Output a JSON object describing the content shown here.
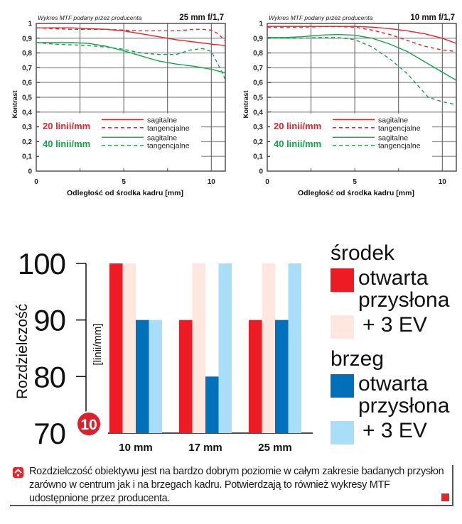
{
  "chart_data": [
    {
      "type": "line",
      "id": "mtf-25mm",
      "title": "25 mm f/1,7",
      "subtitle": "Wykres MTF podany przez producenta",
      "xlabel": "Odległość od środka kadru [mm]",
      "ylabel": "Kontrast",
      "xlim": [
        0,
        10.8
      ],
      "ylim": [
        0,
        1
      ],
      "xticks": [
        0,
        5,
        10
      ],
      "xtick_labels": [
        "0",
        "5",
        "10"
      ],
      "yticks": [
        0,
        0.1,
        0.2,
        0.3,
        0.4,
        0.5,
        0.6,
        0.7,
        0.8,
        0.9,
        1
      ],
      "ytick_labels": [
        "0",
        "0,1",
        "0,2",
        "0,3",
        "0,4",
        "0,5",
        "0,6",
        "0,7",
        "0,8",
        "0,9",
        "1"
      ],
      "grid": true,
      "legend_groups": [
        {
          "label": "20 linii/mm",
          "color": "#e5252c",
          "entries": [
            "sagitalne",
            "tangencjalne"
          ]
        },
        {
          "label": "40 linii/mm",
          "color": "#1aa04a",
          "entries": [
            "sagitalne",
            "tangencjalne"
          ]
        }
      ],
      "series": [
        {
          "name": "20 linii/mm sagitalne",
          "color": "#e5252c",
          "dash": false,
          "x": [
            0,
            1,
            2,
            3,
            4,
            5,
            6,
            7,
            8,
            9,
            10,
            10.8
          ],
          "y": [
            0.97,
            0.97,
            0.97,
            0.965,
            0.96,
            0.95,
            0.93,
            0.91,
            0.89,
            0.875,
            0.86,
            0.85
          ]
        },
        {
          "name": "20 linii/mm tangencjalne",
          "color": "#e5252c",
          "dash": true,
          "x": [
            0,
            1,
            2,
            3,
            4,
            5,
            6,
            7,
            8,
            9,
            9.5,
            10,
            10.4,
            10.8
          ],
          "y": [
            0.97,
            0.965,
            0.96,
            0.96,
            0.96,
            0.955,
            0.95,
            0.95,
            0.95,
            0.96,
            0.96,
            0.955,
            0.93,
            0.88
          ]
        },
        {
          "name": "40 linii/mm sagitalne",
          "color": "#1aa04a",
          "dash": false,
          "x": [
            0,
            1,
            2,
            3,
            4,
            5,
            6,
            7,
            8,
            9,
            10,
            10.8
          ],
          "y": [
            0.87,
            0.87,
            0.87,
            0.865,
            0.845,
            0.815,
            0.78,
            0.745,
            0.725,
            0.71,
            0.69,
            0.665
          ]
        },
        {
          "name": "40 linii/mm tangencjalne",
          "color": "#1aa04a",
          "dash": true,
          "x": [
            0,
            1,
            2,
            3,
            4,
            5,
            6,
            7,
            8,
            8.8,
            9.5,
            10,
            10.4,
            10.8
          ],
          "y": [
            0.87,
            0.86,
            0.855,
            0.85,
            0.84,
            0.825,
            0.8,
            0.79,
            0.79,
            0.82,
            0.83,
            0.81,
            0.72,
            0.62
          ]
        }
      ]
    },
    {
      "type": "line",
      "id": "mtf-10mm",
      "title": "10 mm f/1,7",
      "subtitle": "Wykres MTF podany przez producenta",
      "xlabel": "Odległość od środka kadru [mm]",
      "ylabel": "Kontrast",
      "xlim": [
        0,
        10.8
      ],
      "ylim": [
        0,
        1
      ],
      "xticks": [
        0,
        5,
        10
      ],
      "xtick_labels": [
        "0",
        "5",
        "10"
      ],
      "yticks": [
        0,
        0.1,
        0.2,
        0.3,
        0.4,
        0.5,
        0.6,
        0.7,
        0.8,
        0.9,
        1
      ],
      "ytick_labels": [
        "0",
        "0,1",
        "0,2",
        "0,3",
        "0,4",
        "0,5",
        "0,6",
        "0,7",
        "0,8",
        "0,9",
        "1"
      ],
      "grid": true,
      "legend_groups": [
        {
          "label": "20 linii/mm",
          "color": "#e5252c",
          "entries": [
            "sagitalne",
            "tangencjalne"
          ]
        },
        {
          "label": "40 linii/mm",
          "color": "#1aa04a",
          "entries": [
            "sagitalne",
            "tangencjalne"
          ]
        }
      ],
      "series": [
        {
          "name": "20 linii/mm sagitalne",
          "color": "#e5252c",
          "dash": false,
          "x": [
            0,
            1,
            2,
            3,
            4,
            5,
            6,
            7,
            8,
            9,
            10,
            10.8
          ],
          "y": [
            0.98,
            0.98,
            0.98,
            0.98,
            0.98,
            0.98,
            0.975,
            0.965,
            0.95,
            0.93,
            0.9,
            0.865
          ]
        },
        {
          "name": "20 linii/mm tangencjalne",
          "color": "#e5252c",
          "dash": true,
          "x": [
            0,
            1,
            2,
            3,
            4,
            5,
            6,
            7,
            8,
            9,
            10,
            10.8
          ],
          "y": [
            0.975,
            0.975,
            0.975,
            0.978,
            0.978,
            0.975,
            0.955,
            0.925,
            0.885,
            0.845,
            0.82,
            0.81
          ]
        },
        {
          "name": "40 linii/mm sagitalne",
          "color": "#1aa04a",
          "dash": false,
          "x": [
            0,
            1,
            2,
            3,
            4,
            5,
            6,
            7,
            8,
            9,
            10,
            10.8
          ],
          "y": [
            0.905,
            0.905,
            0.91,
            0.92,
            0.925,
            0.92,
            0.9,
            0.86,
            0.81,
            0.74,
            0.67,
            0.615
          ]
        },
        {
          "name": "40 linii/mm tangencjalne",
          "color": "#1aa04a",
          "dash": true,
          "x": [
            0,
            1,
            2,
            3,
            4,
            5,
            6,
            7,
            8,
            8.6,
            9.2,
            10,
            10.8
          ],
          "y": [
            0.905,
            0.9,
            0.9,
            0.905,
            0.905,
            0.89,
            0.84,
            0.76,
            0.66,
            0.58,
            0.5,
            0.47,
            0.45
          ]
        }
      ]
    },
    {
      "type": "bar",
      "id": "resolution",
      "title": "",
      "xlabel": "",
      "ylabel": "Rozdzielczość",
      "yunit": "[linii/mm]",
      "ylim": [
        70,
        100
      ],
      "yticks": [
        70,
        80,
        90,
        100
      ],
      "ytick_labels": [
        "70",
        "80",
        "90",
        "100"
      ],
      "grid": false,
      "categories": [
        "10 mm",
        "17 mm",
        "25 mm"
      ],
      "series": [
        {
          "name": "środek – otwarta przysłona",
          "color": "#ed1c24",
          "values": [
            100,
            90,
            90
          ]
        },
        {
          "name": "środek – + 3 EV",
          "color": "#fde7de",
          "values": [
            100,
            100,
            100
          ]
        },
        {
          "name": "brzeg – otwarta przysłona",
          "color": "#0070bb",
          "values": [
            90,
            80,
            90
          ]
        },
        {
          "name": "brzeg – + 3 EV",
          "color": "#a9def8",
          "values": [
            90,
            100,
            100
          ]
        }
      ],
      "badge": "10",
      "legend_placement": "right"
    }
  ],
  "legend": {
    "groups": [
      {
        "title": "środek",
        "items": [
          {
            "label": "otwarta przysłona",
            "color": "#ed1c24"
          },
          {
            "label": "+ 3 EV",
            "color": "#fde7de"
          }
        ]
      },
      {
        "title": "brzeg",
        "items": [
          {
            "label": "otwarta przysłona",
            "color": "#0070bb"
          },
          {
            "label": "+ 3 EV",
            "color": "#a9def8"
          }
        ]
      }
    ]
  },
  "caption": {
    "icon": "warning-up-arrow-icon",
    "text": "Rozdzielczość obiektywu jest na bardzo dobrym poziomie w całym zakresie badanych przysłon zarówno w centrum jak i na brzegach kadru. Potwierdzają to również wykresy MTF udostępnione przez producenta."
  },
  "colors": {
    "red": "#e5252c",
    "green": "#1aa04a",
    "accent": "#e5252c"
  }
}
